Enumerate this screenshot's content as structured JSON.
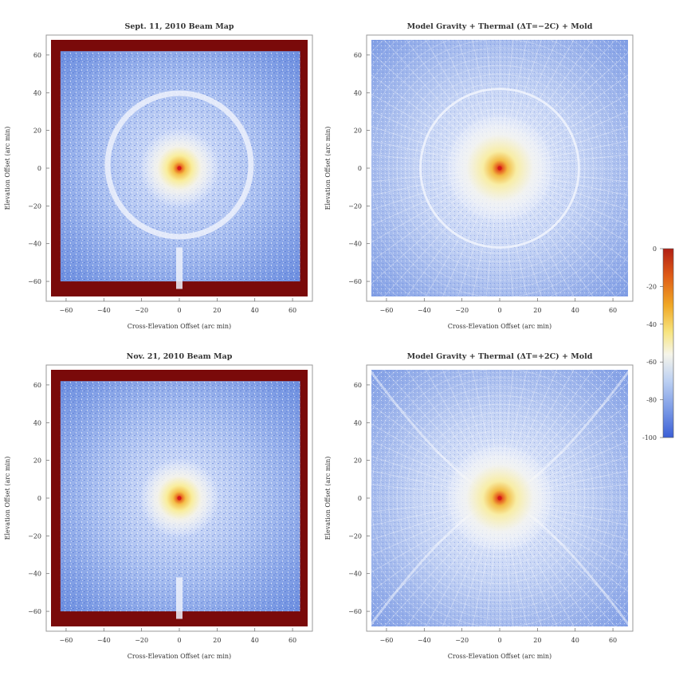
{
  "figure": {
    "colors": {
      "background": "#ffffff",
      "frame": "#999999",
      "mask_border": "#7a0a0a",
      "map_field": "#6f8fe0",
      "map_light": "#e8eefb",
      "peak": "#d61a1a"
    }
  },
  "colorbar": {
    "ticks": [
      "0",
      "-20",
      "-40",
      "-60",
      "-80",
      "-100"
    ],
    "colors": [
      "#b11f14",
      "#de5a17",
      "#f0a826",
      "#f7e47e",
      "#f6f5ea",
      "#bcd0f2",
      "#7c9be6",
      "#3b5fd6"
    ]
  },
  "chart_data": [
    {
      "type": "heatmap",
      "title": "Sept. 11, 2010 Beam Map",
      "xlabel": "Cross-Elevation Offset (arc min)",
      "ylabel": "Elevation Offset (arc min)",
      "xlim": [
        -68,
        68
      ],
      "ylim": [
        -68,
        68
      ],
      "xticks": [
        -60,
        -40,
        -20,
        0,
        20,
        40,
        60
      ],
      "yticks": [
        -60,
        -40,
        -20,
        0,
        20,
        40,
        60
      ],
      "peak": {
        "x": 0,
        "y": 0,
        "value_db": 0
      },
      "features": {
        "ring_radius": 38,
        "masked_edge_beyond": 64,
        "strut_shadow_below": -42
      },
      "colorbar_range_db": [
        -100,
        0
      ],
      "kind": "measured"
    },
    {
      "type": "heatmap",
      "title": "Model Gravity + Thermal (ΔT=−2C) + Mold",
      "xlabel": "Cross-Elevation Offset (arc min)",
      "ylabel": "Elevation Offset (arc min)",
      "xlim": [
        -68,
        68
      ],
      "ylim": [
        -68,
        68
      ],
      "xticks": [
        -60,
        -40,
        -20,
        0,
        20,
        40,
        60
      ],
      "yticks": [
        -60,
        -40,
        -20,
        0,
        20,
        40,
        60
      ],
      "peak": {
        "x": 0,
        "y": 0,
        "value_db": 0
      },
      "features": {
        "ring_radius": 42
      },
      "colorbar_range_db": [
        -100,
        0
      ],
      "kind": "model"
    },
    {
      "type": "heatmap",
      "title": "Nov. 21, 2010 Beam Map",
      "xlabel": "Cross-Elevation Offset (arc min)",
      "ylabel": "Elevation Offset (arc min)",
      "xlim": [
        -68,
        68
      ],
      "ylim": [
        -68,
        68
      ],
      "xticks": [
        -60,
        -40,
        -20,
        0,
        20,
        40,
        60
      ],
      "yticks": [
        -60,
        -40,
        -20,
        0,
        20,
        40,
        60
      ],
      "peak": {
        "x": 0,
        "y": 0,
        "value_db": 0
      },
      "features": {
        "masked_edge_beyond": 64,
        "strut_shadow_below": -42
      },
      "colorbar_range_db": [
        -100,
        0
      ],
      "kind": "measured"
    },
    {
      "type": "heatmap",
      "title": "Model Gravity + Thermal (ΔT=+2C) + Mold",
      "xlabel": "Cross-Elevation Offset (arc min)",
      "ylabel": "Elevation Offset (arc min)",
      "xlim": [
        -68,
        68
      ],
      "ylim": [
        -68,
        68
      ],
      "xticks": [
        -60,
        -40,
        -20,
        0,
        20,
        40,
        60
      ],
      "yticks": [
        -60,
        -40,
        -20,
        0,
        20,
        40,
        60
      ],
      "peak": {
        "x": 0,
        "y": 0,
        "value_db": 0
      },
      "features": {},
      "colorbar_range_db": [
        -100,
        0
      ],
      "kind": "model"
    }
  ]
}
